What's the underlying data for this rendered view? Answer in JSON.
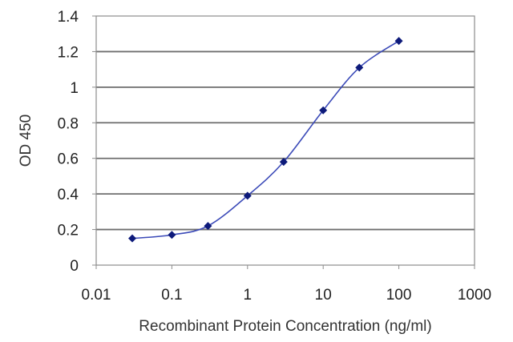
{
  "chart_data": {
    "type": "line",
    "title": "",
    "xlabel": "Recombinant Protein Concentration (ng/ml)",
    "ylabel": "OD 450",
    "x_scale": "log",
    "xlim": [
      0.01,
      1000
    ],
    "ylim": [
      0,
      1.4
    ],
    "x_ticks": [
      0.01,
      0.1,
      1,
      10,
      100,
      1000
    ],
    "x_tick_labels": [
      "0.01",
      "0.1",
      "1",
      "10",
      "100",
      "1000"
    ],
    "y_ticks": [
      0,
      0.2,
      0.4,
      0.6,
      0.8,
      1,
      1.2,
      1.4
    ],
    "y_tick_labels": [
      "0",
      "0.2",
      "0.4",
      "0.6",
      "0.8",
      "1",
      "1.2",
      "1.4"
    ],
    "grid": "horizontal",
    "legend": "none",
    "series": [
      {
        "x": [
          0.03,
          0.1,
          0.3,
          1,
          3,
          10,
          30,
          100
        ],
        "y": [
          0.15,
          0.17,
          0.22,
          0.39,
          0.58,
          0.87,
          1.11,
          1.26
        ]
      }
    ],
    "colors": {
      "line": "#3b4ab8",
      "marker": "#0d1a7a",
      "grid": "#6f6f6f",
      "frame": "#8c8c8c"
    }
  }
}
